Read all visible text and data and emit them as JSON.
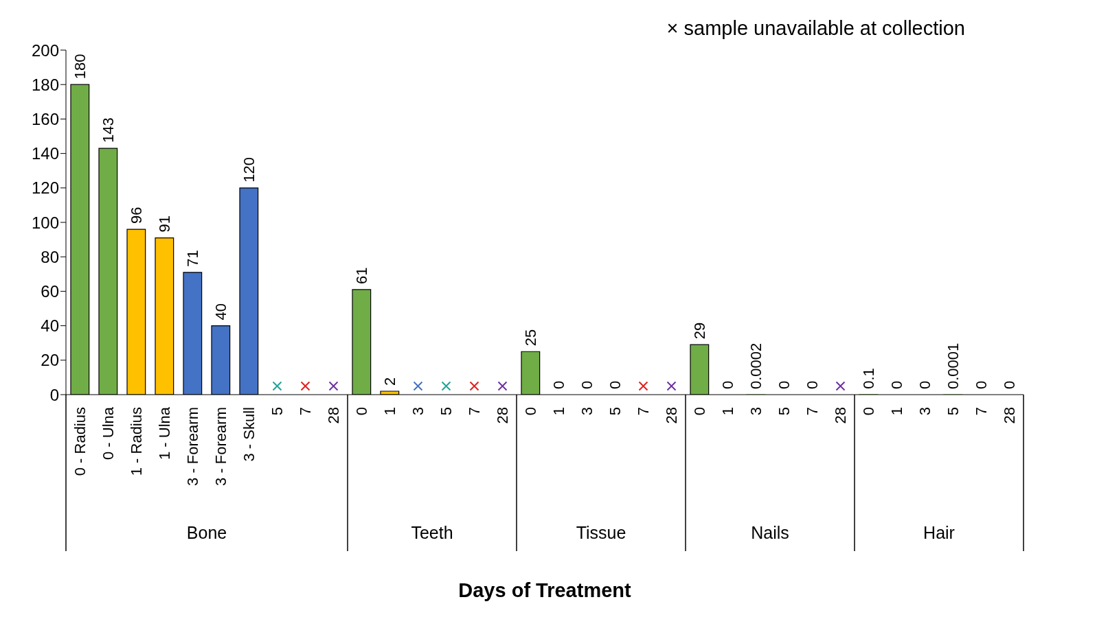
{
  "chart_data": {
    "type": "bar",
    "xlabel": "Days of Treatment",
    "annotations": [
      "× sample unavailable at collection",
      "Bone",
      "Teeth",
      "Tissue",
      "Nails",
      "Hair"
    ],
    "categories": [
      "0 - Radius",
      "0 - Ulna",
      "1 - Radius",
      "1 - Ulna",
      "3 - Forearm",
      "3 - Forearm",
      "3 - Skull",
      "5",
      "7",
      "28",
      "0",
      "1",
      "3",
      "5",
      "7",
      "28",
      "0",
      "1",
      "3",
      "5",
      "7",
      "28",
      "0",
      "1",
      "3",
      "5",
      "7",
      "28",
      "0",
      "1",
      "3",
      "5",
      "7",
      "28"
    ],
    "series": [
      {
        "colors": [
          "#70ad47",
          "#70ad47",
          "#ffc000",
          "#ffc000",
          "#4472c4",
          "#4472c4",
          "#4472c4",
          null,
          null,
          null,
          "#70ad47",
          "#ffc000",
          null,
          null,
          null,
          null,
          "#70ad47",
          "#70ad47",
          "#70ad47",
          "#70ad47",
          null,
          null,
          "#70ad47",
          "#70ad47",
          "#70ad47",
          "#70ad47",
          "#70ad47",
          null,
          "#70ad47",
          "#70ad47",
          "#70ad47",
          "#70ad47",
          "#70ad47",
          "#70ad47"
        ],
        "values": [
          180,
          143,
          96,
          91,
          71,
          40,
          120,
          null,
          null,
          null,
          61,
          2,
          null,
          null,
          null,
          null,
          25,
          0,
          0,
          0,
          null,
          null,
          29,
          0,
          0.0002,
          0,
          0,
          null,
          0.1,
          0,
          0,
          0.0001,
          0,
          0
        ],
        "value_labels": [
          "180",
          "143",
          "96",
          "91",
          "71",
          "40",
          "120",
          null,
          null,
          null,
          "61",
          "2",
          null,
          null,
          null,
          null,
          "25",
          "0",
          "0",
          "0",
          null,
          null,
          "29",
          "0",
          "0.0002",
          "0",
          "0",
          null,
          "0.1",
          "0",
          "0",
          "0.0001",
          "0",
          "0"
        ]
      },
      {
        "type": "scatter",
        "marker": "cross",
        "colors": [
          null,
          null,
          null,
          null,
          null,
          null,
          null,
          "#1fa39a",
          "#e0201b",
          "#7030a0",
          null,
          null,
          "#4472c4",
          "#1fa39a",
          "#e0201b",
          "#7030a0",
          null,
          null,
          null,
          null,
          "#e0201b",
          "#7030a0",
          null,
          null,
          null,
          null,
          null,
          "#7030a0",
          null,
          null,
          null,
          null,
          null,
          null
        ],
        "values": [
          null,
          null,
          null,
          null,
          null,
          null,
          null,
          5,
          5,
          5,
          null,
          null,
          5,
          5,
          5,
          5,
          null,
          null,
          null,
          null,
          5,
          5,
          null,
          null,
          null,
          null,
          null,
          5,
          null,
          null,
          null,
          null,
          null,
          null
        ]
      }
    ],
    "ylim": [
      0,
      200
    ],
    "yticks": [
      0,
      20,
      40,
      60,
      80,
      100,
      120,
      140,
      160,
      180,
      200
    ],
    "grid": false
  }
}
